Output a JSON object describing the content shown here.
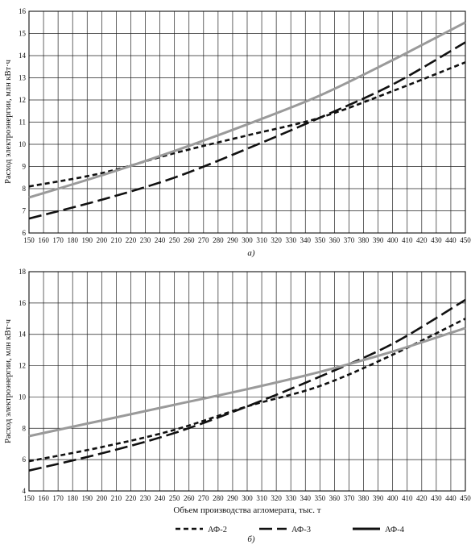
{
  "chart_data": [
    {
      "type": "line",
      "panel_label": "а)",
      "ylabel": "Расход электроэнергии, млн кВт·ч",
      "xlabel": "",
      "xlim": [
        150,
        450
      ],
      "ylim": [
        6,
        16
      ],
      "x_ticks": [
        150,
        160,
        170,
        180,
        190,
        200,
        210,
        220,
        230,
        240,
        250,
        260,
        270,
        280,
        290,
        300,
        310,
        320,
        330,
        340,
        350,
        360,
        370,
        380,
        390,
        400,
        410,
        420,
        430,
        440,
        450
      ],
      "y_ticks": [
        6,
        7,
        8,
        9,
        10,
        11,
        12,
        13,
        14,
        15,
        16
      ],
      "grid": true,
      "x": [
        150,
        200,
        250,
        300,
        350,
        400,
        450
      ],
      "series": [
        {
          "name": "АФ-2",
          "style": "short-dash",
          "color": "#111111",
          "values": [
            8.1,
            8.7,
            9.6,
            10.4,
            11.2,
            12.4,
            13.7
          ]
        },
        {
          "name": "АФ-3",
          "style": "long-dash",
          "color": "#111111",
          "values": [
            6.65,
            7.5,
            8.5,
            9.8,
            11.2,
            12.7,
            14.6
          ]
        },
        {
          "name": "АФ-4",
          "style": "solid",
          "color": "#9a9a9a",
          "values": [
            7.6,
            8.6,
            9.7,
            10.9,
            12.2,
            13.8,
            15.5
          ]
        }
      ]
    },
    {
      "type": "line",
      "panel_label": "б)",
      "ylabel": "Расход электроэнергии, млн кВт·ч",
      "xlabel": "Объем производства агломерата, тыс. т",
      "xlim": [
        150,
        450
      ],
      "ylim": [
        4,
        18
      ],
      "x_ticks": [
        150,
        160,
        170,
        180,
        190,
        200,
        210,
        220,
        230,
        240,
        250,
        260,
        270,
        280,
        290,
        300,
        310,
        320,
        330,
        340,
        350,
        360,
        370,
        380,
        390,
        400,
        410,
        420,
        430,
        440,
        450
      ],
      "y_ticks": [
        4,
        6,
        8,
        10,
        12,
        14,
        16,
        18
      ],
      "grid": true,
      "x": [
        150,
        200,
        250,
        300,
        350,
        400,
        450
      ],
      "series": [
        {
          "name": "АФ-2",
          "style": "short-dash",
          "color": "#111111",
          "values": [
            5.9,
            6.8,
            7.9,
            9.4,
            10.7,
            12.7,
            15.0
          ]
        },
        {
          "name": "АФ-3",
          "style": "long-dash",
          "color": "#111111",
          "values": [
            5.3,
            6.4,
            7.7,
            9.4,
            11.3,
            13.4,
            16.2
          ]
        },
        {
          "name": "АФ-4",
          "style": "solid",
          "color": "#9a9a9a",
          "values": [
            7.5,
            8.5,
            9.5,
            10.5,
            11.6,
            12.9,
            14.4
          ]
        }
      ]
    }
  ],
  "legend": {
    "items": [
      {
        "name": "АФ-2",
        "style": "short-dash"
      },
      {
        "name": "АФ-3",
        "style": "long-dash"
      },
      {
        "name": "АФ-4",
        "style": "solid"
      }
    ],
    "placement": "bottom"
  }
}
